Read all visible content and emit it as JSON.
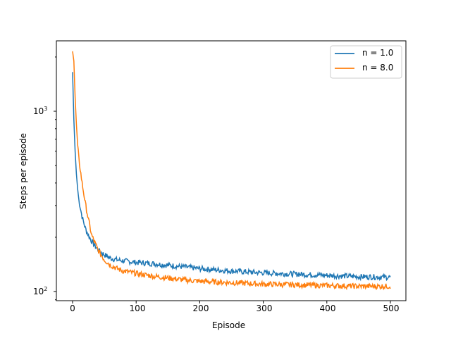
{
  "chart_data": {
    "type": "line",
    "title": "",
    "xlabel": "Episode",
    "ylabel": "Steps per episode",
    "yscale": "log",
    "xlim": [
      -25,
      525
    ],
    "ylim": [
      88,
      2400
    ],
    "xticks": [
      0,
      100,
      200,
      300,
      400,
      500
    ],
    "xtick_labels": [
      "0",
      "100",
      "200",
      "300",
      "400",
      "500"
    ],
    "yticks": [
      100,
      1000
    ],
    "ytick_labels": [
      "10^2",
      "10^3"
    ],
    "grid": false,
    "legend_position": "upper right",
    "series": [
      {
        "name": "n = 1.0",
        "color": "#1f77b4",
        "x": [
          0,
          2,
          4,
          6,
          8,
          10,
          15,
          20,
          25,
          30,
          40,
          50,
          60,
          70,
          80,
          100,
          125,
          150,
          175,
          200,
          250,
          300,
          350,
          400,
          450,
          500
        ],
        "values": [
          1650,
          900,
          600,
          450,
          370,
          320,
          260,
          225,
          205,
          190,
          170,
          160,
          153,
          150,
          148,
          145,
          143,
          140,
          137,
          134,
          130,
          127,
          125,
          123,
          121,
          120
        ]
      },
      {
        "name": "n = 8.0",
        "color": "#ff7f0e",
        "x": [
          0,
          2,
          4,
          6,
          8,
          10,
          15,
          20,
          25,
          30,
          40,
          50,
          60,
          70,
          80,
          100,
          125,
          150,
          175,
          200,
          250,
          300,
          350,
          400,
          450,
          500
        ],
        "values": [
          2150,
          1900,
          1200,
          850,
          650,
          540,
          400,
          310,
          250,
          205,
          170,
          150,
          140,
          134,
          130,
          126,
          122,
          119,
          116,
          114,
          112,
          110,
          109,
          108,
          107,
          107
        ]
      }
    ]
  },
  "legend": {
    "items": [
      {
        "label": "n = 1.0",
        "color": "#1f77b4"
      },
      {
        "label": "n = 8.0",
        "color": "#ff7f0e"
      }
    ]
  },
  "axes": {
    "xlabel": "Episode",
    "ylabel": "Steps per episode",
    "xtick_labels": [
      "0",
      "100",
      "200",
      "300",
      "400",
      "500"
    ],
    "ytick_base": "10",
    "ytick_exps": [
      "3",
      "2"
    ]
  }
}
